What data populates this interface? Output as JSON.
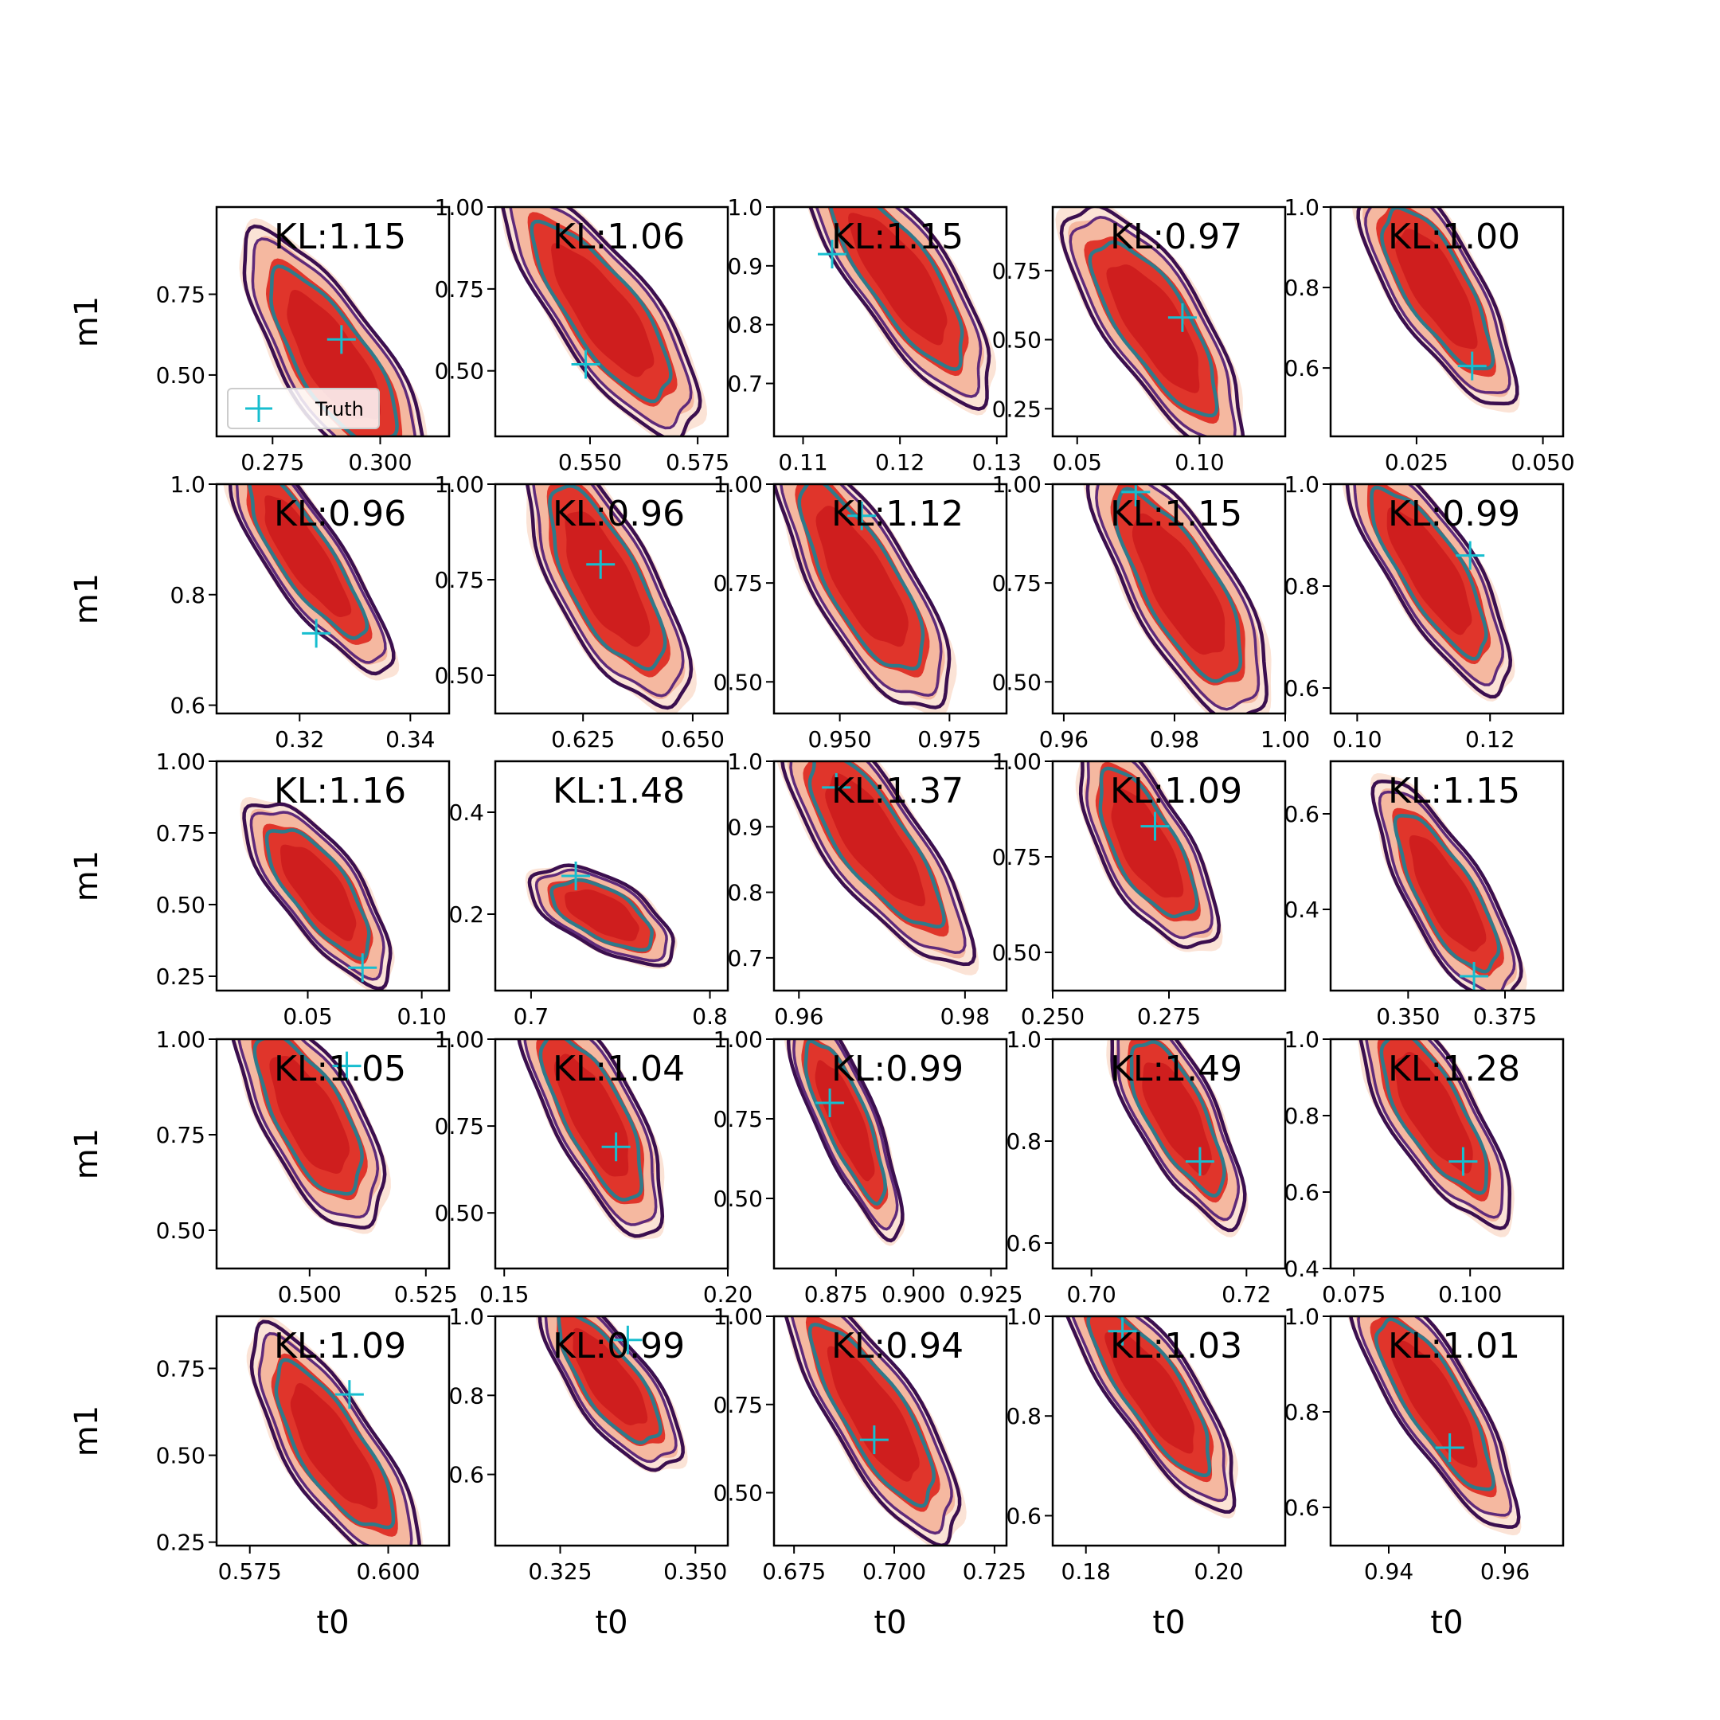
{
  "figure": {
    "legend_label": "Truth",
    "colors": {
      "fill_light": "#fbe3d6",
      "fill_mid": "#f5b8a0",
      "fill_dark": "#e0352b",
      "fill_core": "#cf1e1e",
      "contour_outer": "#3b0f4f",
      "contour_mid": "#5e2a7a",
      "contour_inner": "#2f7a8a",
      "truth": "#17becf"
    }
  },
  "chart_data": [
    {
      "type": "contour",
      "kl": "KL:1.15",
      "xticks": [
        "0.275",
        "0.300"
      ],
      "xtick_values": [
        0.275,
        0.3
      ],
      "yticks": [
        "0.50",
        "0.75"
      ],
      "ytick_values": [
        0.5,
        0.75
      ],
      "xlim": [
        0.262,
        0.316
      ],
      "ylim": [
        0.31,
        1.02
      ],
      "center": [
        0.289,
        0.55
      ],
      "rx": 0.013,
      "ry": 0.36,
      "tilt": 0.55,
      "truth": [
        0.291,
        0.61
      ],
      "ylabel": "m1",
      "xlabel": "",
      "legend": true
    },
    {
      "type": "contour",
      "kl": "KL:1.06",
      "xticks": [
        "0.550",
        "0.575"
      ],
      "xtick_values": [
        0.55,
        0.575
      ],
      "yticks": [
        "0.50",
        "0.75",
        "1.00"
      ],
      "ytick_values": [
        0.5,
        0.75,
        1.0
      ],
      "xlim": [
        0.528,
        0.582
      ],
      "ylim": [
        0.3,
        1.0
      ],
      "center": [
        0.553,
        0.68
      ],
      "rx": 0.013,
      "ry": 0.36,
      "tilt": 0.62,
      "truth": [
        0.549,
        0.52
      ],
      "ylabel": "",
      "xlabel": "",
      "legend": false
    },
    {
      "type": "contour",
      "kl": "KL:1.15",
      "xticks": [
        "0.11",
        "0.12",
        "0.13"
      ],
      "xtick_values": [
        0.11,
        0.12,
        0.13
      ],
      "yticks": [
        "0.7",
        "0.8",
        "0.9",
        "1.0"
      ],
      "ytick_values": [
        0.7,
        0.8,
        0.9,
        1.0
      ],
      "xlim": [
        0.107,
        0.131
      ],
      "ylim": [
        0.61,
        1.0
      ],
      "center": [
        0.12,
        0.88
      ],
      "rx": 0.0055,
      "ry": 0.2,
      "tilt": 0.6,
      "truth": [
        0.113,
        0.92
      ],
      "ylabel": "",
      "xlabel": "",
      "legend": false
    },
    {
      "type": "contour",
      "kl": "KL:0.97",
      "xticks": [
        "0.05",
        "0.10"
      ],
      "xtick_values": [
        0.05,
        0.1
      ],
      "yticks": [
        "0.25",
        "0.50",
        "0.75"
      ],
      "ytick_values": [
        0.25,
        0.5,
        0.75
      ],
      "xlim": [
        0.04,
        0.135
      ],
      "ylim": [
        0.15,
        0.98
      ],
      "center": [
        0.082,
        0.55
      ],
      "rx": 0.022,
      "ry": 0.42,
      "tilt": 0.55,
      "truth": [
        0.093,
        0.58
      ],
      "ylabel": "",
      "xlabel": "",
      "legend": false
    },
    {
      "type": "contour",
      "kl": "KL:1.00",
      "xticks": [
        "0.025",
        "0.050"
      ],
      "xtick_values": [
        0.025,
        0.05
      ],
      "yticks": [
        "0.6",
        "0.8",
        "1.0"
      ],
      "ytick_values": [
        0.6,
        0.8,
        1.0
      ],
      "xlim": [
        0.008,
        0.054
      ],
      "ylim": [
        0.43,
        1.0
      ],
      "center": [
        0.029,
        0.8
      ],
      "rx": 0.0095,
      "ry": 0.27,
      "tilt": 0.5,
      "truth": [
        0.036,
        0.605
      ],
      "ylabel": "",
      "xlabel": "",
      "legend": false
    },
    {
      "type": "contour",
      "kl": "KL:0.96",
      "xticks": [
        "0.32",
        "0.34"
      ],
      "xtick_values": [
        0.32,
        0.34
      ],
      "yticks": [
        "0.6",
        "0.8",
        "1.0"
      ],
      "ytick_values": [
        0.6,
        0.8,
        1.0
      ],
      "xlim": [
        0.305,
        0.347
      ],
      "ylim": [
        0.585,
        1.0
      ],
      "center": [
        0.321,
        0.87
      ],
      "rx": 0.0075,
      "ry": 0.2,
      "tilt": 0.6,
      "truth": [
        0.323,
        0.73
      ],
      "ylabel": "m1",
      "xlabel": "",
      "legend": false
    },
    {
      "type": "contour",
      "kl": "KL:0.96",
      "xticks": [
        "0.625",
        "0.650"
      ],
      "xtick_values": [
        0.625,
        0.65
      ],
      "yticks": [
        "0.50",
        "0.75",
        "1.00"
      ],
      "ytick_values": [
        0.5,
        0.75,
        1.0
      ],
      "xlim": [
        0.605,
        0.658
      ],
      "ylim": [
        0.4,
        1.0
      ],
      "center": [
        0.63,
        0.75
      ],
      "rx": 0.012,
      "ry": 0.32,
      "tilt": 0.45,
      "truth": [
        0.629,
        0.79
      ],
      "ylabel": "",
      "xlabel": "",
      "legend": false
    },
    {
      "type": "contour",
      "kl": "KL:1.12",
      "xticks": [
        "0.950",
        "0.975"
      ],
      "xtick_values": [
        0.95,
        0.975
      ],
      "yticks": [
        "0.50",
        "0.75",
        "1.00"
      ],
      "ytick_values": [
        0.5,
        0.75,
        1.0
      ],
      "xlim": [
        0.935,
        0.988
      ],
      "ylim": [
        0.42,
        1.0
      ],
      "center": [
        0.955,
        0.76
      ],
      "rx": 0.012,
      "ry": 0.32,
      "tilt": 0.5,
      "truth": [
        0.955,
        0.92
      ],
      "ylabel": "",
      "xlabel": "",
      "legend": false
    },
    {
      "type": "contour",
      "kl": "KL:1.15",
      "xticks": [
        "0.96",
        "0.98",
        "1.00"
      ],
      "xtick_values": [
        0.96,
        0.98,
        1.0
      ],
      "yticks": [
        "0.50",
        "0.75",
        "1.00"
      ],
      "ytick_values": [
        0.5,
        0.75,
        1.0
      ],
      "xlim": [
        0.958,
        1.0
      ],
      "ylim": [
        0.42,
        1.0
      ],
      "center": [
        0.981,
        0.74
      ],
      "rx": 0.01,
      "ry": 0.32,
      "tilt": 0.5,
      "truth": [
        0.973,
        0.98
      ],
      "ylabel": "",
      "xlabel": "",
      "legend": false
    },
    {
      "type": "contour",
      "kl": "KL:0.99",
      "xticks": [
        "0.10",
        "0.12"
      ],
      "xtick_values": [
        0.1,
        0.12
      ],
      "yticks": [
        "0.6",
        "0.8",
        "1.0"
      ],
      "ytick_values": [
        0.6,
        0.8,
        1.0
      ],
      "xlim": [
        0.096,
        0.131
      ],
      "ylim": [
        0.55,
        1.0
      ],
      "center": [
        0.111,
        0.83
      ],
      "rx": 0.007,
      "ry": 0.22,
      "tilt": 0.55,
      "truth": [
        0.117,
        0.86
      ],
      "ylabel": "",
      "xlabel": "",
      "legend": false
    },
    {
      "type": "contour",
      "kl": "KL:1.16",
      "xticks": [
        "0.05",
        "0.10"
      ],
      "xtick_values": [
        0.05,
        0.1
      ],
      "yticks": [
        "0.25",
        "0.50",
        "0.75",
        "1.00"
      ],
      "ytick_values": [
        0.25,
        0.5,
        0.75,
        1.0
      ],
      "xlim": [
        0.01,
        0.112
      ],
      "ylim": [
        0.2,
        1.0
      ],
      "center": [
        0.055,
        0.55
      ],
      "rx": 0.02,
      "ry": 0.3,
      "tilt": 0.6,
      "truth": [
        0.074,
        0.28
      ],
      "ylabel": "m1",
      "xlabel": "",
      "legend": false
    },
    {
      "type": "contour",
      "kl": "KL:1.48",
      "xticks": [
        "0.7",
        "0.8"
      ],
      "xtick_values": [
        0.7,
        0.8
      ],
      "yticks": [
        "0.2",
        "0.4"
      ],
      "ytick_values": [
        0.2,
        0.4
      ],
      "xlim": [
        0.68,
        0.81
      ],
      "ylim": [
        0.05,
        0.5
      ],
      "center": [
        0.74,
        0.2
      ],
      "rx": 0.03,
      "ry": 0.09,
      "tilt": 0.9,
      "truth": [
        0.725,
        0.275
      ],
      "ylabel": "",
      "xlabel": "",
      "legend": false
    },
    {
      "type": "contour",
      "kl": "KL:1.37",
      "xticks": [
        "0.96",
        "0.98"
      ],
      "xtick_values": [
        0.96,
        0.98
      ],
      "yticks": [
        "0.7",
        "0.8",
        "0.9",
        "1.0"
      ],
      "ytick_values": [
        0.7,
        0.8,
        0.9,
        1.0
      ],
      "xlim": [
        0.957,
        0.985
      ],
      "ylim": [
        0.65,
        1.0
      ],
      "center": [
        0.969,
        0.88
      ],
      "rx": 0.0065,
      "ry": 0.18,
      "tilt": 0.6,
      "truth": [
        0.9645,
        0.96
      ],
      "ylabel": "",
      "xlabel": "",
      "legend": false
    },
    {
      "type": "contour",
      "kl": "KL:1.09",
      "xticks": [
        "0.250",
        "0.275"
      ],
      "xtick_values": [
        0.25,
        0.275
      ],
      "yticks": [
        "0.50",
        "0.75",
        "1.00"
      ],
      "ytick_values": [
        0.5,
        0.75,
        1.0
      ],
      "xlim": [
        0.25,
        0.3
      ],
      "ylim": [
        0.4,
        1.0
      ],
      "center": [
        0.27,
        0.78
      ],
      "rx": 0.01,
      "ry": 0.26,
      "tilt": 0.45,
      "truth": [
        0.272,
        0.83
      ],
      "ylabel": "",
      "xlabel": "",
      "legend": false
    },
    {
      "type": "contour",
      "kl": "KL:1.15",
      "xticks": [
        "0.350",
        "0.375"
      ],
      "xtick_values": [
        0.35,
        0.375
      ],
      "yticks": [
        "0.4",
        "0.6"
      ],
      "ytick_values": [
        0.4,
        0.6
      ],
      "xlim": [
        0.33,
        0.39
      ],
      "ylim": [
        0.23,
        0.71
      ],
      "center": [
        0.36,
        0.43
      ],
      "rx": 0.011,
      "ry": 0.22,
      "tilt": 0.5,
      "truth": [
        0.367,
        0.26
      ],
      "ylabel": "",
      "xlabel": "",
      "legend": false
    },
    {
      "type": "contour",
      "kl": "KL:1.05",
      "xticks": [
        "0.500",
        "0.525"
      ],
      "xtick_values": [
        0.5,
        0.525
      ],
      "yticks": [
        "0.50",
        "0.75",
        "1.00"
      ],
      "ytick_values": [
        0.5,
        0.75,
        1.0
      ],
      "xlim": [
        0.48,
        0.53
      ],
      "ylim": [
        0.4,
        1.0
      ],
      "center": [
        0.5,
        0.8
      ],
      "rx": 0.011,
      "ry": 0.28,
      "tilt": 0.45,
      "truth": [
        0.508,
        0.93
      ],
      "ylabel": "m1",
      "xlabel": "",
      "legend": false
    },
    {
      "type": "contour",
      "kl": "KL:1.04",
      "xticks": [
        "0.15",
        "0.20"
      ],
      "xtick_values": [
        0.15,
        0.2
      ],
      "yticks": [
        "0.50",
        "0.75",
        "1.00"
      ],
      "ytick_values": [
        0.5,
        0.75,
        1.0
      ],
      "xlim": [
        0.148,
        0.2
      ],
      "ylim": [
        0.34,
        1.0
      ],
      "center": [
        0.17,
        0.78
      ],
      "rx": 0.01,
      "ry": 0.32,
      "tilt": 0.45,
      "truth": [
        0.175,
        0.69
      ],
      "ylabel": "",
      "xlabel": "",
      "legend": false
    },
    {
      "type": "contour",
      "kl": "KL:0.99",
      "xticks": [
        "0.875",
        "0.900",
        "0.925"
      ],
      "xtick_values": [
        0.875,
        0.9,
        0.925
      ],
      "yticks": [
        "0.50",
        "0.75",
        "1.00"
      ],
      "ytick_values": [
        0.5,
        0.75,
        1.0
      ],
      "xlim": [
        0.855,
        0.93
      ],
      "ylim": [
        0.28,
        1.0
      ],
      "center": [
        0.878,
        0.75
      ],
      "rx": 0.01,
      "ry": 0.34,
      "tilt": 0.4,
      "truth": [
        0.873,
        0.8
      ],
      "ylabel": "",
      "xlabel": "",
      "legend": false
    },
    {
      "type": "contour",
      "kl": "KL:1.49",
      "xticks": [
        "0.70",
        "0.72"
      ],
      "xtick_values": [
        0.7,
        0.72
      ],
      "yticks": [
        "0.6",
        "0.8",
        "1.0"
      ],
      "ytick_values": [
        0.6,
        0.8,
        1.0
      ],
      "xlim": [
        0.695,
        0.725
      ],
      "ylim": [
        0.55,
        1.0
      ],
      "center": [
        0.711,
        0.85
      ],
      "rx": 0.0055,
      "ry": 0.2,
      "tilt": 0.45,
      "truth": [
        0.714,
        0.76
      ],
      "ylabel": "",
      "xlabel": "",
      "legend": false
    },
    {
      "type": "contour",
      "kl": "KL:1.28",
      "xticks": [
        "0.075",
        "0.100"
      ],
      "xtick_values": [
        0.075,
        0.1
      ],
      "yticks": [
        "0.4",
        "0.6",
        "0.8",
        "1.0"
      ],
      "ytick_values": [
        0.4,
        0.6,
        0.8,
        1.0
      ],
      "xlim": [
        0.07,
        0.12
      ],
      "ylim": [
        0.4,
        1.0
      ],
      "center": [
        0.092,
        0.81
      ],
      "rx": 0.01,
      "ry": 0.28,
      "tilt": 0.5,
      "truth": [
        0.0985,
        0.68
      ],
      "ylabel": "",
      "xlabel": "",
      "legend": false
    },
    {
      "type": "contour",
      "kl": "KL:1.09",
      "xticks": [
        "0.575",
        "0.600"
      ],
      "xtick_values": [
        0.575,
        0.6
      ],
      "yticks": [
        "0.25",
        "0.50",
        "0.75"
      ],
      "ytick_values": [
        0.25,
        0.5,
        0.75
      ],
      "xlim": [
        0.569,
        0.611
      ],
      "ylim": [
        0.24,
        0.9
      ],
      "center": [
        0.59,
        0.52
      ],
      "rx": 0.009,
      "ry": 0.32,
      "tilt": 0.55,
      "truth": [
        0.593,
        0.675
      ],
      "ylabel": "m1",
      "xlabel": "t0",
      "legend": false
    },
    {
      "type": "contour",
      "kl": "KL:0.99",
      "xticks": [
        "0.325",
        "0.350"
      ],
      "xtick_values": [
        0.325,
        0.35
      ],
      "yticks": [
        "0.6",
        "0.8",
        "1.0"
      ],
      "ytick_values": [
        0.6,
        0.8,
        1.0
      ],
      "xlim": [
        0.313,
        0.356
      ],
      "ylim": [
        0.42,
        1.0
      ],
      "center": [
        0.334,
        0.84
      ],
      "rx": 0.008,
      "ry": 0.22,
      "tilt": 0.6,
      "truth": [
        0.3375,
        0.94
      ],
      "ylabel": "",
      "xlabel": "t0",
      "legend": false
    },
    {
      "type": "contour",
      "kl": "KL:0.94",
      "xticks": [
        "0.675",
        "0.700",
        "0.725"
      ],
      "xtick_values": [
        0.675,
        0.7,
        0.725
      ],
      "yticks": [
        "0.50",
        "0.75",
        "1.00"
      ],
      "ytick_values": [
        0.5,
        0.75,
        1.0
      ],
      "xlim": [
        0.67,
        0.728
      ],
      "ylim": [
        0.35,
        1.0
      ],
      "center": [
        0.695,
        0.72
      ],
      "rx": 0.012,
      "ry": 0.34,
      "tilt": 0.55,
      "truth": [
        0.695,
        0.65
      ],
      "ylabel": "",
      "xlabel": "t0",
      "legend": false
    },
    {
      "type": "contour",
      "kl": "KL:1.03",
      "xticks": [
        "0.18",
        "0.20"
      ],
      "xtick_values": [
        0.18,
        0.2
      ],
      "yticks": [
        "0.6",
        "0.8",
        "1.0"
      ],
      "ytick_values": [
        0.6,
        0.8,
        1.0
      ],
      "xlim": [
        0.175,
        0.21
      ],
      "ylim": [
        0.54,
        1.0
      ],
      "center": [
        0.19,
        0.85
      ],
      "rx": 0.007,
      "ry": 0.22,
      "tilt": 0.6,
      "truth": [
        0.1855,
        0.97
      ],
      "ylabel": "",
      "xlabel": "t0",
      "legend": false
    },
    {
      "type": "contour",
      "kl": "KL:1.01",
      "xticks": [
        "0.94",
        "0.96"
      ],
      "xtick_values": [
        0.94,
        0.96
      ],
      "yticks": [
        "0.6",
        "0.8",
        "1.0"
      ],
      "ytick_values": [
        0.6,
        0.8,
        1.0
      ],
      "xlim": [
        0.93,
        0.97
      ],
      "ylim": [
        0.52,
        1.0
      ],
      "center": [
        0.948,
        0.82
      ],
      "rx": 0.0075,
      "ry": 0.24,
      "tilt": 0.55,
      "truth": [
        0.9505,
        0.725
      ],
      "ylabel": "",
      "xlabel": "t0",
      "legend": false
    }
  ]
}
